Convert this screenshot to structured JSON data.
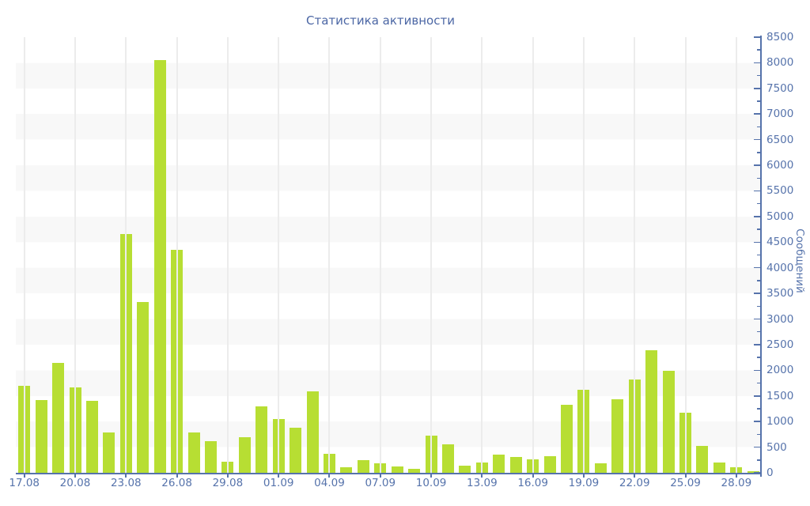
{
  "title": "Статистика активности",
  "chart_data": {
    "type": "bar",
    "title": "Статистика активности",
    "xlabel": "",
    "ylabel": "Сообщений",
    "ylim": [
      0,
      8500
    ],
    "y_major_step": 500,
    "y_minor_step": 250,
    "x_label_every": 3,
    "grid": "alternating horizontal bands + vertical gridlines at labeled ticks",
    "legend_position": "none",
    "x": [
      "17.08",
      "18.08",
      "19.08",
      "20.08",
      "21.08",
      "22.08",
      "23.08",
      "24.08",
      "25.08",
      "26.08",
      "27.08",
      "28.08",
      "29.08",
      "30.08",
      "31.08",
      "01.09",
      "02.09",
      "03.09",
      "04.09",
      "05.09",
      "06.09",
      "07.09",
      "08.09",
      "09.09",
      "10.09",
      "11.09",
      "12.09",
      "13.09",
      "14.09",
      "15.09",
      "16.09",
      "17.09",
      "18.09",
      "19.09",
      "20.09",
      "21.09",
      "22.09",
      "23.09",
      "24.09",
      "25.09",
      "26.09",
      "27.09",
      "28.09",
      "29.09"
    ],
    "values": [
      1700,
      1420,
      2140,
      1670,
      1400,
      790,
      4660,
      3340,
      8050,
      4350,
      790,
      620,
      220,
      700,
      1295,
      1050,
      880,
      1590,
      375,
      115,
      240,
      180,
      130,
      75,
      730,
      550,
      140,
      195,
      360,
      310,
      255,
      325,
      1330,
      1625,
      180,
      1440,
      1820,
      2390,
      1990,
      1165,
      525,
      205,
      115,
      25
    ],
    "x_tick_labels": [
      "17.08",
      "20.08",
      "23.08",
      "26.08",
      "29.08",
      "01.09",
      "04.09",
      "07.09",
      "10.09",
      "13.09",
      "16.09",
      "19.09",
      "22.09",
      "25.09",
      "28.09"
    ],
    "y_tick_labels": [
      "0",
      "500",
      "1000",
      "1500",
      "2000",
      "2500",
      "3000",
      "3500",
      "4000",
      "4500",
      "5000",
      "5500",
      "6000",
      "6500",
      "7000",
      "7500",
      "8000",
      "8500"
    ],
    "colors": {
      "bar": "#b7de33",
      "axis": "#5673ab",
      "label_text": "#5673ab",
      "title_text": "#4c67a5",
      "band": "#f8f8f8",
      "gridline": "#ececec",
      "background": "#ffffff"
    }
  }
}
